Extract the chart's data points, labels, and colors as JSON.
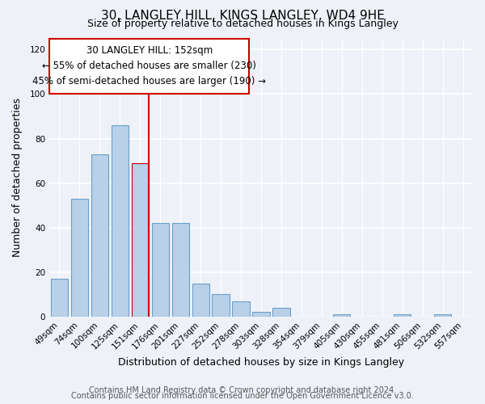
{
  "title": "30, LANGLEY HILL, KINGS LANGLEY, WD4 9HE",
  "subtitle": "Size of property relative to detached houses in Kings Langley",
  "xlabel": "Distribution of detached houses by size in Kings Langley",
  "ylabel": "Number of detached properties",
  "bar_labels": [
    "49sqm",
    "74sqm",
    "100sqm",
    "125sqm",
    "151sqm",
    "176sqm",
    "201sqm",
    "227sqm",
    "252sqm",
    "278sqm",
    "303sqm",
    "328sqm",
    "354sqm",
    "379sqm",
    "405sqm",
    "430sqm",
    "455sqm",
    "481sqm",
    "506sqm",
    "532sqm",
    "557sqm"
  ],
  "bar_values": [
    17,
    53,
    73,
    86,
    69,
    42,
    42,
    15,
    10,
    7,
    2,
    4,
    0,
    0,
    1,
    0,
    0,
    1,
    0,
    1,
    0
  ],
  "bar_color": "#b8d0e8",
  "bar_edge_color": "#6a9fc8",
  "highlight_bar_index": 4,
  "highlight_bar_edge_color": "#cc0000",
  "ylim": [
    0,
    125
  ],
  "yticks": [
    0,
    20,
    40,
    60,
    80,
    100,
    120
  ],
  "annotation_line1": "30 LANGLEY HILL: 152sqm",
  "annotation_line2": "← 55% of detached houses are smaller (230)",
  "annotation_line3": "45% of semi-detached houses are larger (190) →",
  "footer_line1": "Contains HM Land Registry data © Crown copyright and database right 2024.",
  "footer_line2": "Contains public sector information licensed under the Open Government Licence v3.0.",
  "background_color": "#eef2f8",
  "plot_bg_color": "#eef2f8",
  "grid_color": "#d0d8e8",
  "title_fontsize": 11,
  "subtitle_fontsize": 9,
  "axis_label_fontsize": 9,
  "tick_fontsize": 7.5,
  "annotation_fontsize": 8.5,
  "footer_fontsize": 7
}
